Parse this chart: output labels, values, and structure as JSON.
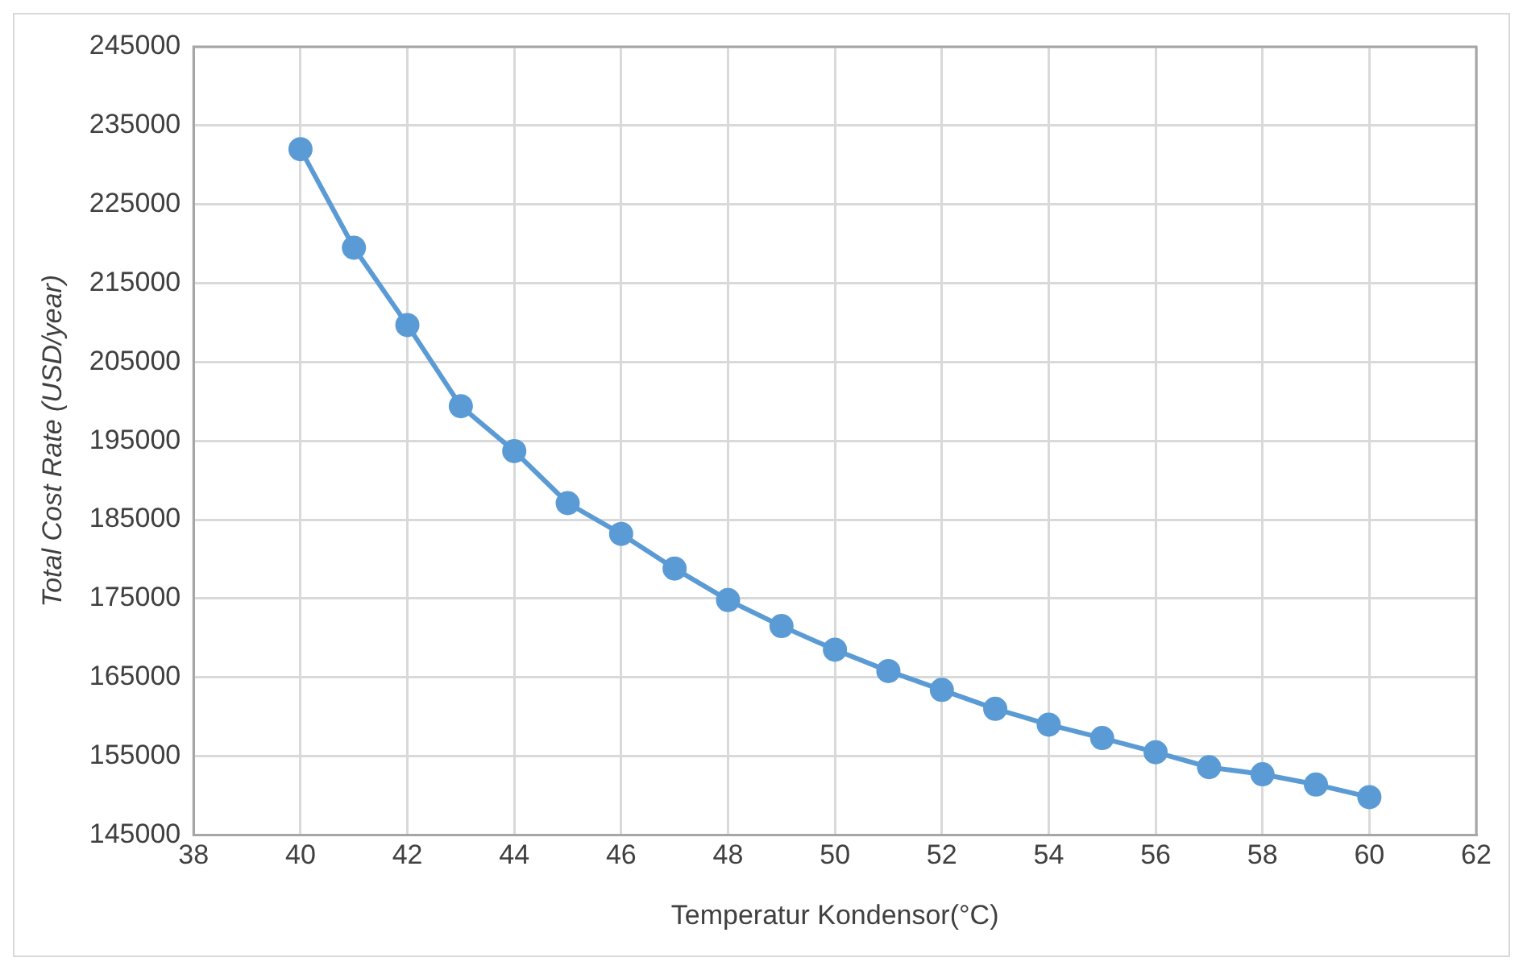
{
  "chart_data": {
    "type": "line",
    "xlabel": "Temperatur Kondensor(°C)",
    "ylabel": "Total Cost Rate (USD/year)",
    "x": [
      40,
      41,
      42,
      43,
      44,
      45,
      46,
      47,
      48,
      49,
      50,
      51,
      52,
      53,
      54,
      55,
      56,
      57,
      58,
      59,
      60
    ],
    "series": [
      {
        "color": "#5b9bd5",
        "values": [
          232000,
          219500,
          209700,
          199400,
          193700,
          187100,
          183200,
          178800,
          174800,
          171500,
          168500,
          165800,
          163400,
          161000,
          159000,
          157300,
          155500,
          153600,
          152700,
          151400,
          149800
        ]
      }
    ],
    "xlim": [
      38,
      62
    ],
    "xticks": [
      38,
      40,
      42,
      44,
      46,
      48,
      50,
      52,
      54,
      56,
      58,
      60,
      62
    ],
    "ylim": [
      145000,
      245000
    ],
    "yticks": [
      145000,
      155000,
      165000,
      175000,
      185000,
      195000,
      205000,
      215000,
      225000,
      235000,
      245000
    ],
    "grid": true,
    "legend": false,
    "marker": "circle",
    "line_style": "solid"
  }
}
